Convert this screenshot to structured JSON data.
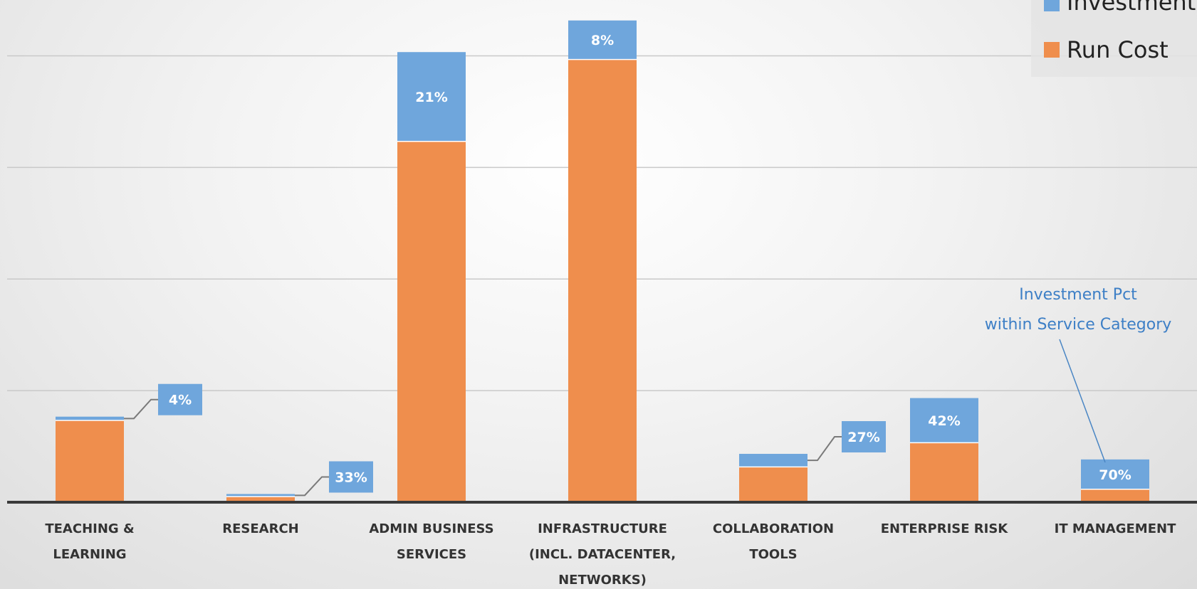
{
  "chart_data": {
    "type": "bar",
    "stacked": true,
    "categories": [
      [
        "TEACHING &",
        "LEARNING"
      ],
      [
        "RESEARCH"
      ],
      [
        "ADMIN BUSINESS",
        "SERVICES"
      ],
      [
        "INFRASTRUCTURE",
        "(INCL. DATACENTER,",
        "NETWORKS)"
      ],
      [
        "COLLABORATION",
        "TOOLS"
      ],
      [
        "ENTERPRISE RISK"
      ],
      [
        "IT MANAGEMENT"
      ]
    ],
    "series": [
      {
        "name": "Run Cost",
        "color": "#ef8e4d",
        "values": [
          22,
          1.5,
          97,
          119,
          9.5,
          16,
          3.5
        ]
      },
      {
        "name": "Investment",
        "color": "#6fa6dc",
        "values": [
          1,
          0.7,
          24,
          10.5,
          3.5,
          12,
          8
        ]
      }
    ],
    "investment_pct_labels": [
      "4%",
      "33%",
      "21%",
      "8%",
      "27%",
      "42%",
      "70%"
    ],
    "ylim": [
      0,
      135
    ],
    "grid_interval": 30,
    "legend_position": "top-right",
    "annotation": [
      "Investment Pct",
      "within Service Category"
    ]
  }
}
